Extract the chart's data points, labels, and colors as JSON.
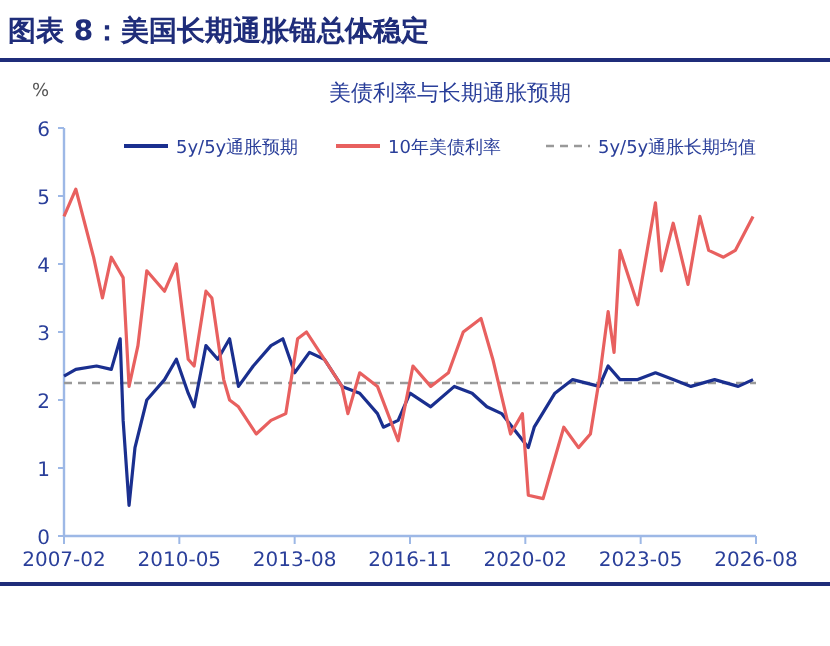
{
  "chart_data": {
    "type": "line",
    "title": "图表 8：美国长期通胀锚总体稳定",
    "subtitle": "美债利率与长期通胀预期",
    "ylabel": "%",
    "xlim": [
      "2007-02",
      "2026-08"
    ],
    "xticks": [
      {
        "value": "2007-02",
        "label": "2007-02"
      },
      {
        "value": "2010-05",
        "label": "2010-05"
      },
      {
        "value": "2013-08",
        "label": "2013-08"
      },
      {
        "value": "2016-11",
        "label": "2016-11"
      },
      {
        "value": "2020-02",
        "label": "2020-02"
      },
      {
        "value": "2023-05",
        "label": "2023-05"
      },
      {
        "value": "2026-08",
        "label": "2026-08"
      }
    ],
    "ylim": [
      0,
      6
    ],
    "yticks": [
      0,
      1,
      2,
      3,
      4,
      5,
      6
    ],
    "grid": false,
    "legend": "top",
    "line_style": "solid",
    "marker": "none",
    "series": [
      {
        "name": "5y/5y通胀预期",
        "color": "#1a2f8f",
        "x": [
          "2007-02",
          "2007-06",
          "2008-01",
          "2008-06",
          "2008-09",
          "2008-10",
          "2008-12",
          "2009-02",
          "2009-06",
          "2009-12",
          "2010-04",
          "2010-08",
          "2010-10",
          "2011-02",
          "2011-06",
          "2011-10",
          "2012-01",
          "2012-06",
          "2012-12",
          "2013-04",
          "2013-08",
          "2014-01",
          "2014-06",
          "2014-12",
          "2015-06",
          "2015-12",
          "2016-02",
          "2016-07",
          "2016-11",
          "2017-06",
          "2018-02",
          "2018-08",
          "2019-01",
          "2019-06",
          "2020-03",
          "2020-05",
          "2020-12",
          "2021-06",
          "2022-03",
          "2022-06",
          "2022-10",
          "2023-04",
          "2023-10",
          "2024-04",
          "2024-10",
          "2025-06",
          "2026-02",
          "2026-07"
        ],
        "values": [
          2.35,
          2.45,
          2.5,
          2.45,
          2.9,
          1.7,
          0.45,
          1.3,
          2.0,
          2.3,
          2.6,
          2.1,
          1.9,
          2.8,
          2.6,
          2.9,
          2.2,
          2.5,
          2.8,
          2.9,
          2.4,
          2.7,
          2.6,
          2.2,
          2.1,
          1.8,
          1.6,
          1.7,
          2.1,
          1.9,
          2.2,
          2.1,
          1.9,
          1.8,
          1.3,
          1.6,
          2.1,
          2.3,
          2.2,
          2.5,
          2.3,
          2.3,
          2.4,
          2.3,
          2.2,
          2.3,
          2.2,
          2.3
        ]
      },
      {
        "name": "10年美债利率",
        "color": "#e8605f",
        "x": [
          "2007-02",
          "2007-06",
          "2007-12",
          "2008-03",
          "2008-06",
          "2008-10",
          "2008-12",
          "2009-03",
          "2009-06",
          "2009-12",
          "2010-04",
          "2010-08",
          "2010-10",
          "2011-02",
          "2011-04",
          "2011-08",
          "2011-10",
          "2012-01",
          "2012-07",
          "2012-12",
          "2013-05",
          "2013-09",
          "2013-12",
          "2014-06",
          "2014-12",
          "2015-02",
          "2015-06",
          "2015-12",
          "2016-07",
          "2016-12",
          "2017-06",
          "2017-12",
          "2018-05",
          "2018-11",
          "2019-03",
          "2019-09",
          "2020-01",
          "2020-03",
          "2020-08",
          "2021-03",
          "2021-08",
          "2021-12",
          "2022-03",
          "2022-06",
          "2022-08",
          "2022-10",
          "2023-04",
          "2023-10",
          "2023-12",
          "2024-04",
          "2024-09",
          "2025-01",
          "2025-04",
          "2025-09",
          "2026-01",
          "2026-07"
        ],
        "values": [
          4.7,
          5.1,
          4.1,
          3.5,
          4.1,
          3.8,
          2.2,
          2.8,
          3.9,
          3.6,
          4.0,
          2.6,
          2.5,
          3.6,
          3.5,
          2.3,
          2.0,
          1.9,
          1.5,
          1.7,
          1.8,
          2.9,
          3.0,
          2.6,
          2.2,
          1.8,
          2.4,
          2.2,
          1.4,
          2.5,
          2.2,
          2.4,
          3.0,
          3.2,
          2.6,
          1.5,
          1.8,
          0.6,
          0.55,
          1.6,
          1.3,
          1.5,
          2.3,
          3.3,
          2.7,
          4.2,
          3.4,
          4.9,
          3.9,
          4.6,
          3.7,
          4.7,
          4.2,
          4.1,
          4.2,
          4.7
        ]
      }
    ],
    "ref_lines": [
      {
        "axis": "y",
        "value": 2.25,
        "label": "5y/5y通胀长期均值",
        "color": "#999999",
        "line_style": "dashed"
      }
    ]
  }
}
